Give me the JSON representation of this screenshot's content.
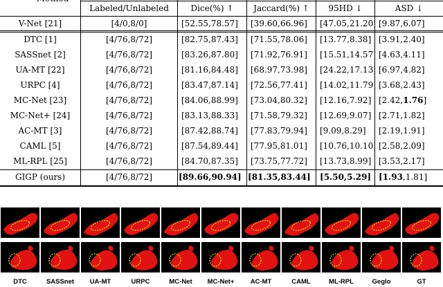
{
  "table": {
    "corner_header": "Method",
    "headers": [
      "Labeled/Unlabeled",
      "Dice(%) ↑",
      "Jaccard(%) ↑",
      "95HD ↓",
      "ASD ↓"
    ],
    "baseline": {
      "method": "V-Net [21]",
      "labeled": "[4/0,8/0]",
      "dice": "[52.55,78.57]",
      "jaccard": "[39.60,66.96]",
      "hd95": "[47.05,21.20]",
      "asd": "[9.87,6.07]"
    },
    "rows": [
      {
        "method": "DTC [1]",
        "labeled": "[4/76,8/72]",
        "dice": "[82.75,87.43]",
        "jaccard": "[71.55,78.06]",
        "hd95": "[13.77,8.38]",
        "asd": "[3.91,2.40]"
      },
      {
        "method": "SASSnet [2]",
        "labeled": "[4/76,8/72]",
        "dice": "[83.26,87.80]",
        "jaccard": "[71.92,76.91]",
        "hd95": "[15.51,14.57]",
        "asd": "[4.63,4.11]"
      },
      {
        "method": "UA-MT [22]",
        "labeled": "[4/76,8/72]",
        "dice": "[81.16,84.48]",
        "jaccard": "[68.97,73.98]",
        "hd95": "[24.22,17.13]",
        "asd": "[6.97,4.82]"
      },
      {
        "method": "URPC [4]",
        "labeled": "[4/76,8/72]",
        "dice": "[83.47,87.14]",
        "jaccard": "[72.56,77.41]",
        "hd95": "[14.02,11.79]",
        "asd": "[3.68,2.43]"
      },
      {
        "method": "MC-Net [23]",
        "labeled": "[4/76,8/72]",
        "dice": "[84.06,88.99]",
        "jaccard": "[73.04,80.32]",
        "hd95": "[12.16,7.92]",
        "asd_pre": "[2.42,",
        "asd_bold": "1.76",
        "asd_post": "]"
      },
      {
        "method": "MC-Net+ [24]",
        "labeled": "[4/76,8/72]",
        "dice": "[83.13,88.33]",
        "jaccard": "[71.58,79.32]",
        "hd95": "[12.69,9.07]",
        "asd": "[2.71,1.82]"
      },
      {
        "method": "AC-MT [3]",
        "labeled": "[4/76,8/72]",
        "dice": "[87.42,88.74]",
        "jaccard": "[77.83,79.94]",
        "hd95": "[9.09,8.29]",
        "asd": "[2.19,1.91]"
      },
      {
        "method": "CAML [5]",
        "labeled": "[4/76,8/72]",
        "dice": "[87.54,89.44]",
        "jaccard": "[77.95,81.01]",
        "hd95": "[10.76,10.10]",
        "asd": "[2.58,2.09]"
      },
      {
        "method": "ML-RPL [25]",
        "labeled": "[4/76,8/72]",
        "dice": "[84.70,87.35]",
        "jaccard": "[73.75,77.72]",
        "hd95": "[13.73,8.99]",
        "asd": "[3.53,2.17]"
      }
    ],
    "ours": {
      "method": "GIGP (ours)",
      "labeled": "[4/76,8/72]",
      "dice_open": "[",
      "dice_bold": "89.66,90.94",
      "dice_close": "]",
      "jaccard_open": "[",
      "jaccard_bold": "81.35,83.44",
      "jaccard_close": "]",
      "hd95_open": "[",
      "hd95_bold": "5.50,5.29",
      "hd95_close": "]",
      "asd_open": "[",
      "asd_bold": "1.93",
      "asd_rest": ",1.81]"
    }
  },
  "figure": {
    "labels": [
      "DTC",
      "SASSnet",
      "UA-MT",
      "URPC",
      "MC-Net",
      "MC-Net+",
      "AC-MT",
      "CAML",
      "ML-RPL",
      "Geglo",
      "GT"
    ],
    "colors": {
      "segmentation": "#e31212",
      "background": "#000000",
      "highlight": "#f2e600"
    }
  }
}
